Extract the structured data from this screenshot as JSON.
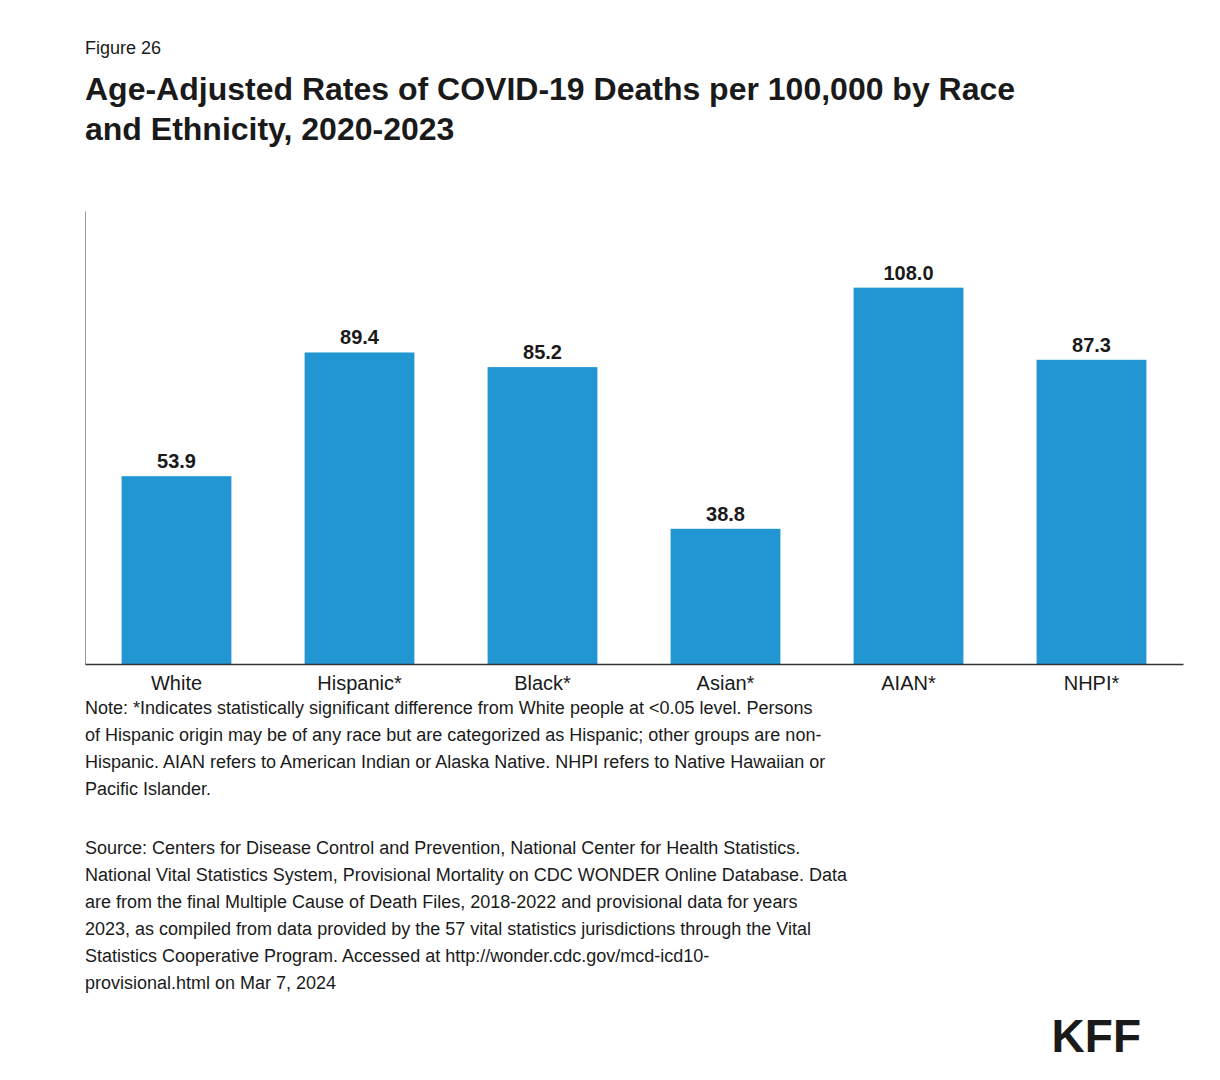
{
  "chart_data": {
    "type": "bar",
    "subtitle": "Figure 26",
    "title": "Age-Adjusted Rates of COVID-19 Deaths per 100,000 by Race\nand Ethnicity, 2020-2023",
    "categories": [
      "White",
      "Hispanic*",
      "Black*",
      "Asian*",
      "AIAN*",
      "NHPI*"
    ],
    "values": [
      53.9,
      89.4,
      85.2,
      38.8,
      108.0,
      87.3
    ],
    "value_labels": [
      "53.9",
      "89.4",
      "85.2",
      "38.8",
      "108.0",
      "87.3"
    ],
    "color": "#2196D3",
    "ylim": [
      0,
      130
    ],
    "grid": false,
    "data_labels": true,
    "tick_labels": "x",
    "annotations": [
      "Note: *Indicates statistically significant difference from White people at <0.05 level. Persons\nof Hispanic origin may be of any race but are categorized as Hispanic; other groups are non-\nHispanic. AIAN refers to American Indian or Alaska Native. NHPI refers to Native Hawaiian or\nPacific Islander.",
      "Source: Centers for Disease Control and Prevention, National Center for Health Statistics.\nNational Vital Statistics System, Provisional Mortality on CDC WONDER Online Database. Data\nare from the final Multiple Cause of Death Files, 2018-2022 and provisional data for years\n2023, as compiled from data provided by the 57 vital statistics jurisdictions through the Vital\nStatistics Cooperative Program. Accessed at http://wonder.cdc.gov/mcd-icd10-\nprovisional.html on Mar 7, 2024",
      "KFF"
    ]
  }
}
